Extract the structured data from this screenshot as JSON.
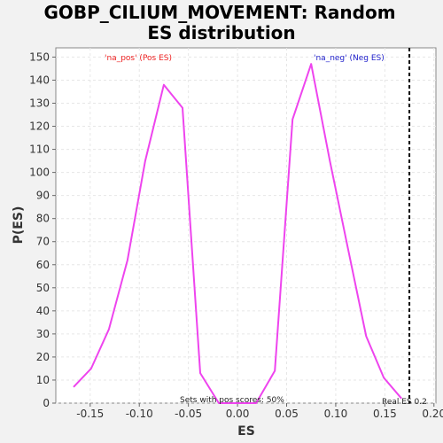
{
  "chart_data": {
    "type": "line",
    "title": "GOBP_CILIUM_MOVEMENT: Random ES distribution",
    "xlabel": "ES",
    "ylabel": "P(ES)",
    "xlim": [
      -0.185,
      0.202
    ],
    "ylim": [
      0,
      154
    ],
    "x_ticks": [
      -0.15,
      -0.1,
      -0.05,
      0.0,
      0.05,
      0.1,
      0.15,
      0.2
    ],
    "x_tick_labels": [
      "-0.15",
      "-0.10",
      "-0.05",
      "0.00",
      "0.05",
      "0.10",
      "0.15",
      "0.20"
    ],
    "y_ticks": [
      0,
      10,
      20,
      30,
      40,
      50,
      60,
      70,
      80,
      90,
      100,
      110,
      120,
      130,
      140,
      150
    ],
    "y_tick_labels": [
      "0",
      "10",
      "20",
      "30",
      "40",
      "50",
      "60",
      "70",
      "80",
      "90",
      "100",
      "110",
      "120",
      "130",
      "140",
      "150"
    ],
    "grid": true,
    "series": [
      {
        "color": "#ee44ee",
        "x": [
          -0.167,
          -0.149,
          -0.131,
          -0.112,
          -0.094,
          -0.075,
          -0.056,
          -0.038,
          -0.019,
          0.0,
          0.019,
          0.038,
          0.056,
          0.075,
          0.094,
          0.112,
          0.131,
          0.149,
          0.167
        ],
        "y": [
          7,
          15,
          32,
          62,
          105,
          138,
          128,
          13,
          0,
          0,
          0,
          14,
          123,
          147,
          105,
          68,
          29,
          11,
          2
        ]
      }
    ],
    "real_es": {
      "value": 0.175,
      "color": "#000000",
      "label": "Real ES 0.2"
    },
    "annotations": {
      "pos_label": "'na_pos' (Pos ES)",
      "pos_color": "#ee2222",
      "neg_label": "'na_neg' (Neg ES)",
      "neg_color": "#2222cc",
      "sets_label": "Sets with pos scores: 50%"
    },
    "colors": {
      "plot_bg": "#ffffff",
      "page_bg": "#f2f2f2",
      "grid": "#e6e6e6"
    }
  }
}
